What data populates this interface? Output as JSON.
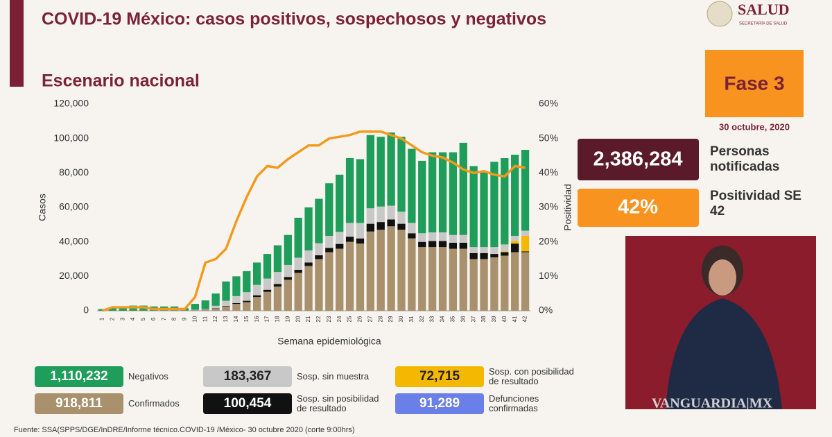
{
  "header": {
    "title": "COVID-19 México: casos positivos, sospechosos y negativos",
    "logo": "SALUD",
    "logo_sub": "SECRETARÍA DE SALUD"
  },
  "phase": {
    "label": "Fase 3",
    "date": "30 octubre, 2020"
  },
  "stats": [
    {
      "value": "2,386,284",
      "label": "Personas notificadas"
    },
    {
      "value": "42%",
      "label": "Positividad SE 42"
    }
  ],
  "summary": [
    {
      "value": "91,289",
      "label": "Defunciones confirmadas",
      "color": "#6b7fe8"
    }
  ],
  "source": "Fuente: SSA(SPPS/DGE/InDRE/Informe técnico.COVID-19 /México- 30 octubre 2020 (corte 9:00hrs)",
  "watermark": "VANGUARDIA|MX",
  "chart_data": {
    "type": "bar",
    "stacked": true,
    "title": "Escenario nacional",
    "x_label": "Semana epidemiológica",
    "y_label": "Casos",
    "y2_label": "Positividad",
    "categories": [
      "1",
      "2",
      "3",
      "4",
      "5",
      "6",
      "7",
      "8",
      "9",
      "10",
      "11",
      "12",
      "13",
      "14",
      "15",
      "16",
      "17",
      "18",
      "19",
      "20",
      "21",
      "22",
      "23",
      "24",
      "25",
      "26",
      "27",
      "28",
      "29",
      "30",
      "31",
      "32",
      "33",
      "34",
      "35",
      "36",
      "37",
      "38",
      "39",
      "40",
      "41",
      "42"
    ],
    "ylim": [
      0,
      120000
    ],
    "yticks": [
      0,
      {
        "value": 20000,
        "label": "20,000"
      },
      {
        "value": 40000,
        "label": "40,000"
      },
      {
        "value": 60000,
        "label": "60,000"
      },
      {
        "value": 80000,
        "label": "80,000"
      },
      {
        "value": 100000,
        "label": "100,000"
      },
      {
        "value": 120000,
        "label": "120,000"
      }
    ],
    "y2lim": [
      0,
      60
    ],
    "y2ticks": [
      {
        "value": 0,
        "label": "0%"
      },
      {
        "value": 10,
        "label": "10%"
      },
      {
        "value": 20,
        "label": "20%"
      },
      {
        "value": 30,
        "label": "30%"
      },
      {
        "value": 40,
        "label": "40%"
      },
      {
        "value": 50,
        "label": "50%"
      },
      {
        "value": 60,
        "label": "60%"
      }
    ],
    "series": [
      {
        "name": "Confirmados",
        "total": "918,811",
        "color": "#a8916c",
        "values": [
          5,
          5,
          10,
          20,
          40,
          60,
          80,
          120,
          150,
          300,
          500,
          1200,
          2500,
          4000,
          5000,
          8000,
          11000,
          14000,
          18000,
          22000,
          26000,
          30000,
          34000,
          36000,
          40000,
          39000,
          46000,
          47000,
          49000,
          47000,
          42000,
          37000,
          37000,
          37000,
          36000,
          36000,
          30000,
          30000,
          31000,
          32000,
          34000,
          34000
        ]
      },
      {
        "name": "Sosp. sin posibilidad de resultado",
        "total": "100,454",
        "color": "#111111",
        "values": [
          0,
          0,
          0,
          0,
          0,
          0,
          0,
          0,
          0,
          50,
          100,
          200,
          300,
          500,
          800,
          1000,
          1200,
          1500,
          1600,
          1800,
          2000,
          2200,
          2500,
          2800,
          3000,
          3000,
          4500,
          4500,
          4000,
          3500,
          3000,
          3000,
          3500,
          3500,
          3500,
          3500,
          3500,
          3500,
          2000,
          2000,
          5000,
          500
        ]
      },
      {
        "name": "Sosp. con posibilidad de resultado",
        "total": "72,715",
        "color": "#f5b800",
        "values": [
          0,
          0,
          0,
          0,
          0,
          0,
          0,
          0,
          0,
          0,
          0,
          0,
          0,
          0,
          0,
          0,
          0,
          0,
          0,
          0,
          0,
          0,
          0,
          0,
          0,
          0,
          0,
          0,
          0,
          0,
          0,
          0,
          0,
          0,
          0,
          0,
          0,
          0,
          0,
          500,
          1500,
          9000
        ]
      },
      {
        "name": "Sosp. sin muestra",
        "total": "183,367",
        "color": "#c8c8c8",
        "values": [
          0,
          0,
          0,
          0,
          0,
          0,
          0,
          0,
          0,
          200,
          400,
          1500,
          3000,
          4000,
          5000,
          6000,
          6500,
          7000,
          7000,
          7000,
          7000,
          7000,
          7000,
          7000,
          8000,
          9000,
          9000,
          9000,
          8000,
          7000,
          6000,
          5000,
          5000,
          5000,
          4500,
          4500,
          3500,
          3500,
          4000,
          4000,
          3000,
          3000
        ]
      },
      {
        "name": "Negativos",
        "total": "1,110,232",
        "color": "#1e9e5a",
        "values": [
          995,
          1495,
          2490,
          2980,
          2960,
          2440,
          2420,
          2380,
          1350,
          3450,
          5000,
          7100,
          11200,
          11500,
          12200,
          13000,
          14300,
          15500,
          17400,
          23200,
          25000,
          25800,
          30500,
          33200,
          37600,
          37000,
          42500,
          40500,
          42500,
          43500,
          43000,
          42000,
          46500,
          46500,
          48000,
          53500,
          47000,
          44000,
          49500,
          50100,
          47100,
          46900
        ]
      },
      {
        "type": "line",
        "axis": "y2",
        "color": "#f39a1e",
        "values": [
          0,
          1,
          1,
          1,
          1,
          0.5,
          0.5,
          0.5,
          0.5,
          4,
          14,
          15,
          18,
          26,
          33,
          39,
          42,
          41.5,
          44,
          46,
          48,
          48,
          50,
          50.5,
          51,
          52,
          52,
          52,
          51,
          50,
          48,
          46,
          45,
          44.5,
          43,
          41,
          40,
          40.5,
          39.5,
          39,
          42,
          41.5
        ]
      }
    ]
  }
}
